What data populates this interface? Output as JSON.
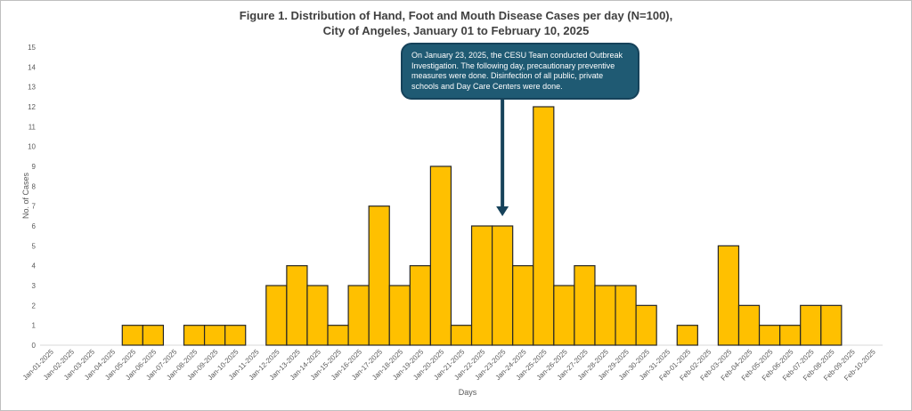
{
  "chart_data": {
    "type": "bar",
    "title_line1": "Figure 1. Distribution of Hand, Foot and Mouth Disease Cases per day (N=100),",
    "title_line2": "City of Angeles, January 01 to February 10, 2025",
    "xlabel": "Days",
    "ylabel": "No. of Cases",
    "ylim": [
      0,
      15
    ],
    "yticks": [
      0,
      1,
      2,
      3,
      4,
      5,
      6,
      7,
      8,
      9,
      10,
      11,
      12,
      13,
      14,
      15
    ],
    "categories": [
      "Jan-01-2025",
      "Jan-02-2025",
      "Jan-03-2025",
      "Jan-04-2025",
      "Jan-05-2025",
      "Jan-06-2025",
      "Jan-07-2025",
      "Jan-08-2025",
      "Jan-09-2025",
      "Jan-10-2025",
      "Jan-11-2025",
      "Jan-12-2025",
      "Jan-13-2025",
      "Jan-14-2025",
      "Jan-15-2025",
      "Jan-16-2025",
      "Jan-17-2025",
      "Jan-18-2025",
      "Jan-19-2025",
      "Jan-20-2025",
      "Jan-21-2025",
      "Jan-22-2025",
      "Jan-23-2025",
      "Jan-24-2025",
      "Jan-25-2025",
      "Jan-26-2025",
      "Jan-27-2025",
      "Jan-28-2025",
      "Jan-29-2025",
      "Jan-30-2025",
      "Jan-31-2025",
      "Feb-01-2025",
      "Feb-02-2025",
      "Feb-03-2025",
      "Feb-04-2025",
      "Feb-05-2025",
      "Feb-06-2025",
      "Feb-07-2025",
      "Feb-08-2025",
      "Feb-09-2025",
      "Feb-10-2025"
    ],
    "values": [
      0,
      0,
      0,
      0,
      1,
      1,
      0,
      1,
      1,
      1,
      0,
      3,
      4,
      3,
      1,
      3,
      7,
      3,
      4,
      9,
      1,
      6,
      6,
      4,
      12,
      3,
      4,
      3,
      3,
      2,
      0,
      1,
      0,
      5,
      2,
      1,
      1,
      2,
      2,
      0,
      0
    ],
    "bar_color": "#ffc000",
    "bar_edge_color": "#262626",
    "annotation": {
      "text": "On January 23, 2025, the CESU Team conducted Outbreak Investigation. The following day, precautionary preventive measures were done. Disinfection of all public, private schools and Day Care Centers were done.",
      "points_to": "Jan-23-2025",
      "fill_color": "#1f5a73"
    },
    "grid": false,
    "legend": "none"
  }
}
